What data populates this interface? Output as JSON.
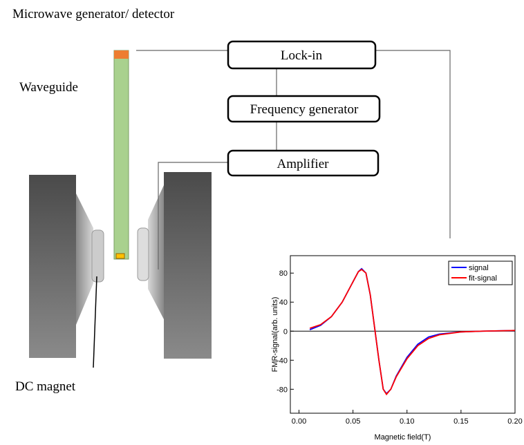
{
  "labels": {
    "microwave": "Microwave generator/ detector",
    "waveguide": "Waveguide",
    "dc_magnet": "DC magnet"
  },
  "boxes": [
    "Lock-in",
    "Frequency generator",
    "Amplifier"
  ],
  "chart_data": {
    "type": "line",
    "xlabel": "Magnetic field(T)",
    "ylabel": "FMR-signal(arb. units)",
    "x": [
      0.01,
      0.02,
      0.03,
      0.04,
      0.05,
      0.055,
      0.058,
      0.062,
      0.066,
      0.07,
      0.074,
      0.078,
      0.081,
      0.085,
      0.09,
      0.1,
      0.11,
      0.12,
      0.13,
      0.15,
      0.17,
      0.2
    ],
    "series": [
      {
        "name": "signal",
        "color": "#0000ff",
        "values": [
          2,
          8,
          20,
          40,
          68,
          82,
          86,
          80,
          50,
          5,
          -40,
          -80,
          -86,
          -80,
          -62,
          -36,
          -18,
          -8,
          -4,
          -1,
          0,
          1
        ]
      },
      {
        "name": "fit-signal",
        "color": "#ff0000",
        "values": [
          4,
          9,
          20,
          40,
          68,
          82,
          85,
          80,
          50,
          5,
          -40,
          -80,
          -87,
          -80,
          -63,
          -38,
          -20,
          -10,
          -5,
          -1,
          0,
          1
        ]
      }
    ],
    "xlim": [
      -0.008,
      0.2
    ],
    "ylim": [
      -113,
      104
    ],
    "xticks": [
      {
        "value": 0,
        "label": "0.00"
      },
      {
        "value": 0.05,
        "label": "0.05"
      },
      {
        "value": 0.1,
        "label": "0.10"
      },
      {
        "value": 0.15,
        "label": "0.15"
      },
      {
        "value": 0.2,
        "label": "0.20"
      }
    ],
    "yticks": [
      -80,
      -40,
      0,
      40,
      80
    ],
    "hline": 0,
    "legend": "upper right"
  }
}
